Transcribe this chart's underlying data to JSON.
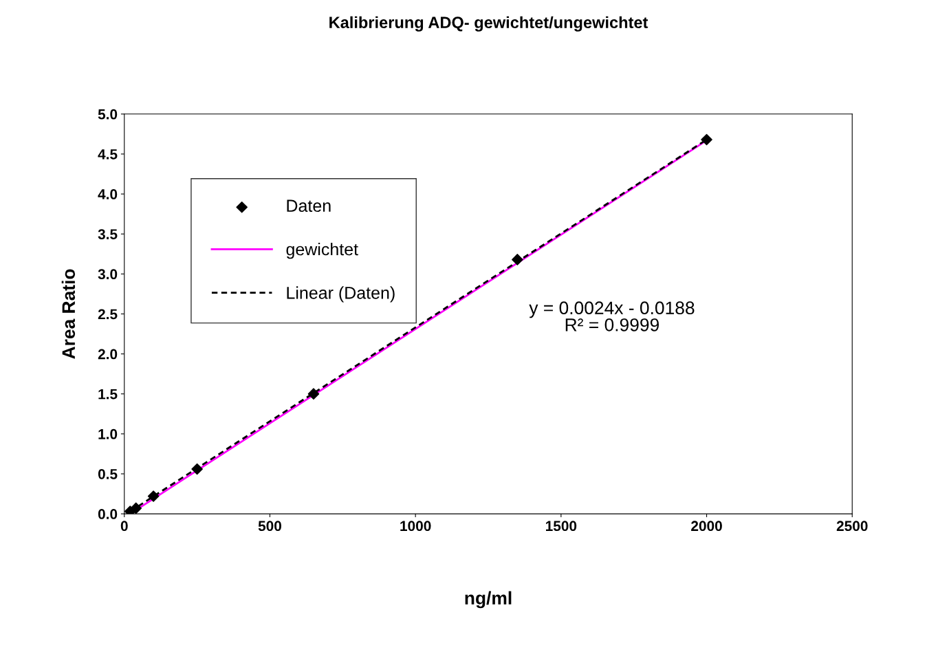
{
  "chart_data": {
    "type": "scatter",
    "title": "Kalibrierung ADQ- gewichtet/ungewichtet",
    "xlabel": "ng/ml",
    "ylabel": "Area Ratio",
    "series": [
      {
        "name": "Daten",
        "color": "#000000",
        "marker": "diamond",
        "x": [
          20,
          40,
          100,
          250,
          650,
          1350,
          2000
        ],
        "values": [
          0.03,
          0.07,
          0.22,
          0.56,
          1.5,
          3.18,
          4.68
        ]
      },
      {
        "name": "gewichtet",
        "type": "line",
        "color": "#ff00ff",
        "line_style": "solid",
        "x": [
          20,
          2000
        ],
        "values": [
          0.0,
          4.67
        ]
      },
      {
        "name": "Linear (Daten)",
        "type": "line",
        "color": "#000000",
        "line_style": "dashed",
        "x": [
          20,
          2000
        ],
        "values": [
          0.03,
          4.68
        ]
      }
    ],
    "xlim": [
      0,
      2500
    ],
    "xticks": [
      0,
      500,
      1000,
      1500,
      2000,
      2500
    ],
    "ylim": [
      0,
      5
    ],
    "yticks": [
      {
        "value": 0,
        "label": "0.0"
      },
      {
        "value": 0.5,
        "label": "0.5"
      },
      {
        "value": 1,
        "label": "1.0"
      },
      {
        "value": 1.5,
        "label": "1.5"
      },
      {
        "value": 2,
        "label": "2.0"
      },
      {
        "value": 2.5,
        "label": "2.5"
      },
      {
        "value": 3,
        "label": "3.0"
      },
      {
        "value": 3.5,
        "label": "3.5"
      },
      {
        "value": 4,
        "label": "4.0"
      },
      {
        "value": 4.5,
        "label": "4.5"
      },
      {
        "value": 5,
        "label": "5.0"
      }
    ],
    "annotations": [
      "y = 0.0024x - 0.0188",
      "R² = 0.9999"
    ],
    "grid": false,
    "legend": "top left"
  }
}
